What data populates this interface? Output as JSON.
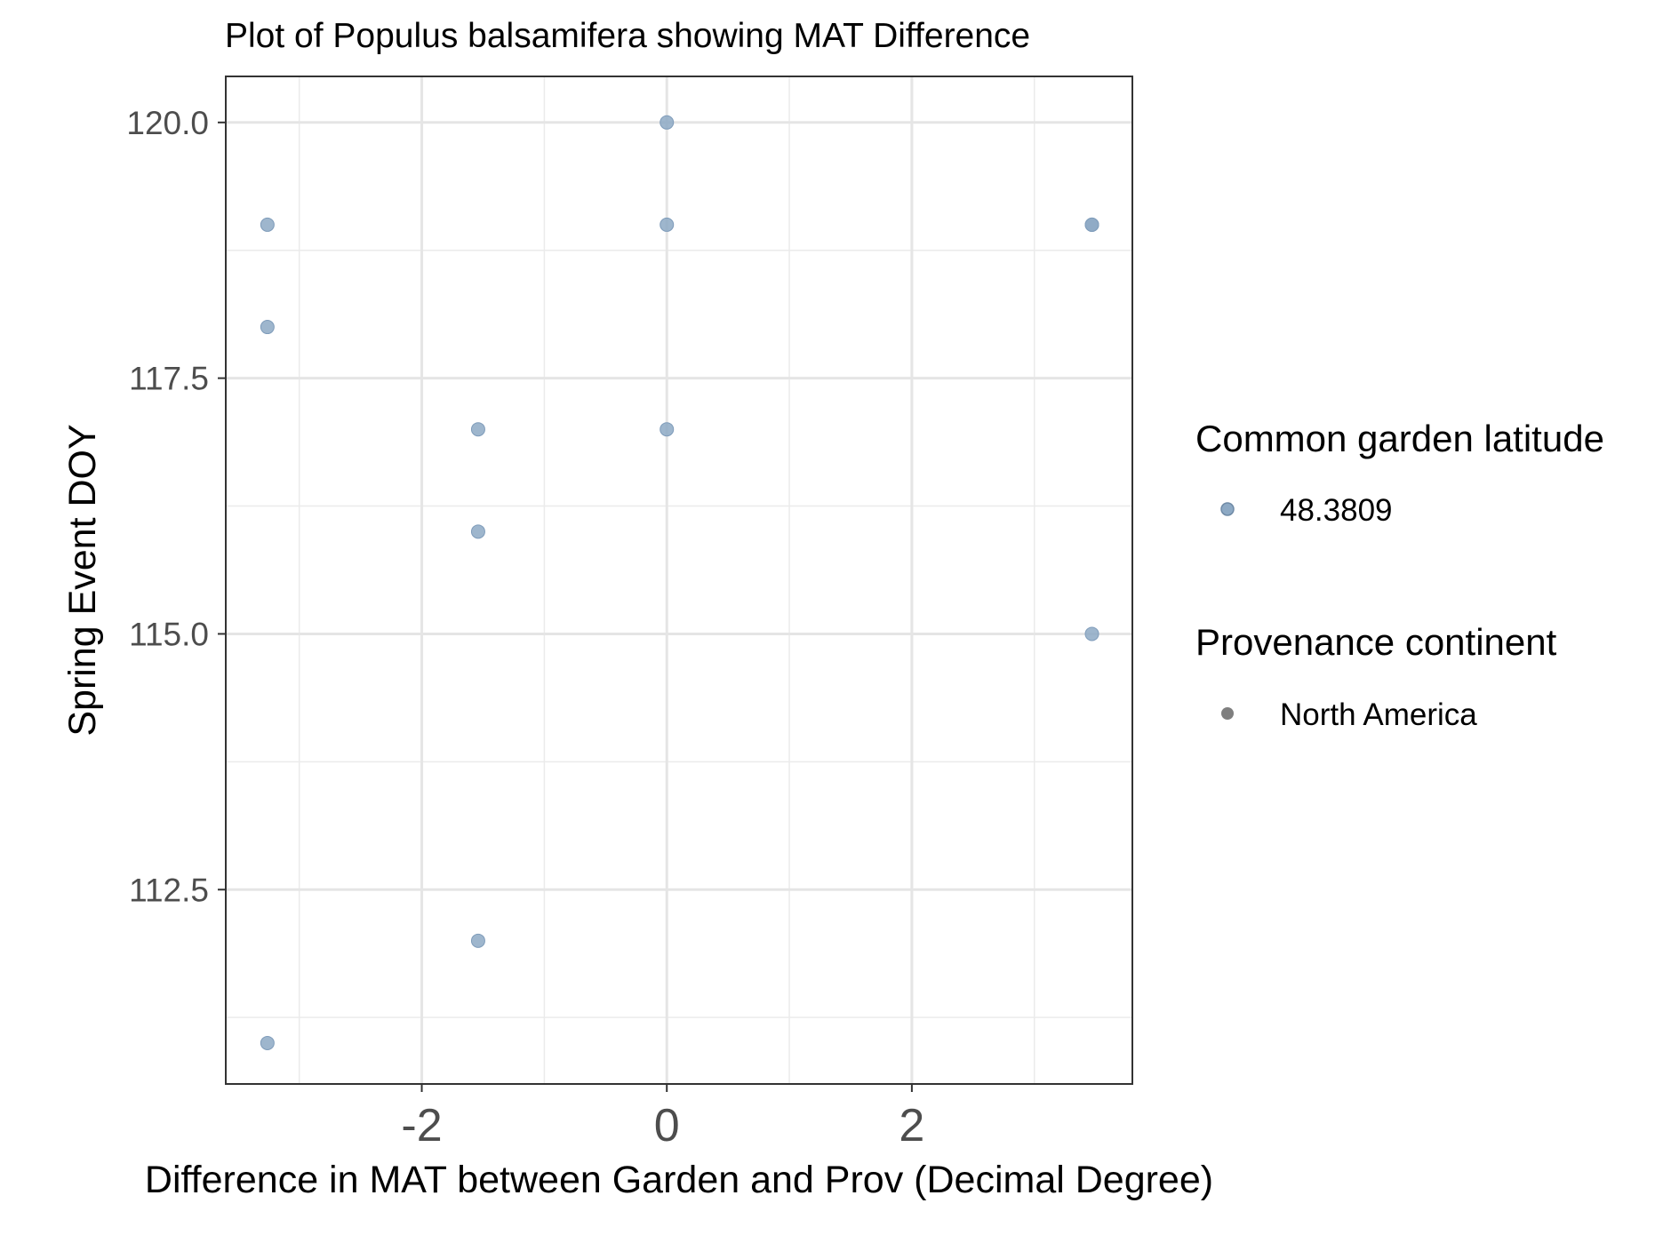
{
  "chart_data": {
    "type": "scatter",
    "title": "Plot of Populus balsamifera showing MAT Difference",
    "xlabel": "Difference in MAT between Garden and Prov (Decimal Degree)",
    "ylabel": "Spring Event DOY",
    "xlim": [
      -3.6,
      3.8
    ],
    "ylim": [
      110.6,
      120.45
    ],
    "x_major_ticks": [
      -2,
      0,
      2
    ],
    "x_minor_ticks": [
      -3,
      -1,
      1,
      3
    ],
    "x_tick_labels": [
      "-2",
      "0",
      "2"
    ],
    "y_major_ticks": [
      112.5,
      115.0,
      117.5,
      120.0
    ],
    "y_minor_ticks": [
      111.25,
      113.75,
      116.25,
      118.75
    ],
    "y_tick_labels": [
      "112.5",
      "115.0",
      "117.5",
      "120.0"
    ],
    "grid": true,
    "legend_position": "right",
    "point_color": "#8da9c4",
    "series": [
      {
        "name": "48.3809",
        "x": [
          -3.26,
          -3.26,
          -3.26,
          -1.54,
          -1.54,
          -1.54,
          0,
          0,
          0,
          3.47,
          3.47,
          3.47
        ],
        "y": [
          119,
          118,
          111,
          117,
          116,
          112,
          120,
          119,
          117,
          119,
          119,
          115
        ]
      }
    ],
    "legends": [
      {
        "title": "Common garden latitude",
        "items": [
          {
            "label": "48.3809",
            "color": "#8da9c4"
          }
        ]
      },
      {
        "title": "Provenance continent",
        "items": [
          {
            "label": "North America",
            "color": "#7f7f7f"
          }
        ]
      }
    ]
  }
}
